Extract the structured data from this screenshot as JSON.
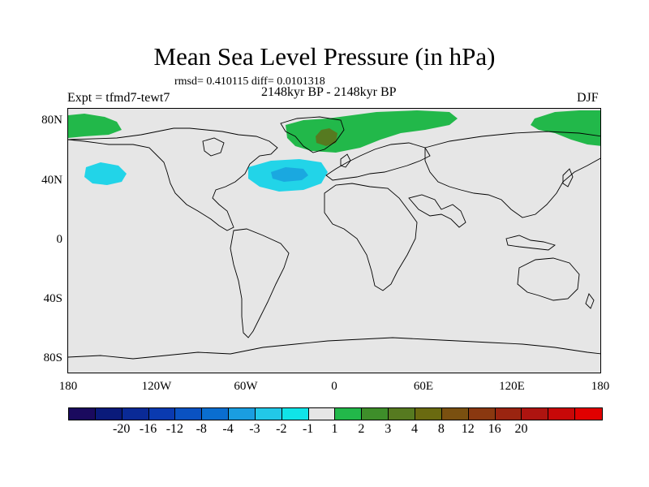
{
  "title": "Mean Sea Level Pressure (in hPa)",
  "subtitle": "rmsd= 0.410115 diff= 0.0101318",
  "left_label": "Expt = tfmd7-tewt7",
  "center_label": "2148kyr BP - 2148kyr BP",
  "right_label": "DJF",
  "lat_labels": [
    "80N",
    "40N",
    "0",
    "40S",
    "80S"
  ],
  "lon_labels": [
    "180",
    "120W",
    "60W",
    "0",
    "60E",
    "120E",
    "180"
  ],
  "colorbar": {
    "colors": [
      "#1a0a5e",
      "#0a1a7a",
      "#0a2a96",
      "#0a3ab0",
      "#0a52c2",
      "#0a6ed0",
      "#1a9ee0",
      "#22c8e8",
      "#10e4e8",
      "#e6e6e6",
      "#22b84a",
      "#3e8e2a",
      "#567a20",
      "#6a6a10",
      "#7a5010",
      "#8a3810",
      "#9a2410",
      "#ae1410",
      "#c80808",
      "#e00000"
    ],
    "labels": [
      "-20",
      "-16",
      "-12",
      "-8",
      "-4",
      "-3",
      "-2",
      "-1",
      "1",
      "2",
      "3",
      "4",
      "8",
      "12",
      "16",
      "20"
    ]
  },
  "colors": {
    "background": "#e6e6e6",
    "green": "#22b84a",
    "dark_green": "#567a20",
    "light_cyan": "#22d4e8",
    "mid_cyan": "#1aa8e0"
  }
}
